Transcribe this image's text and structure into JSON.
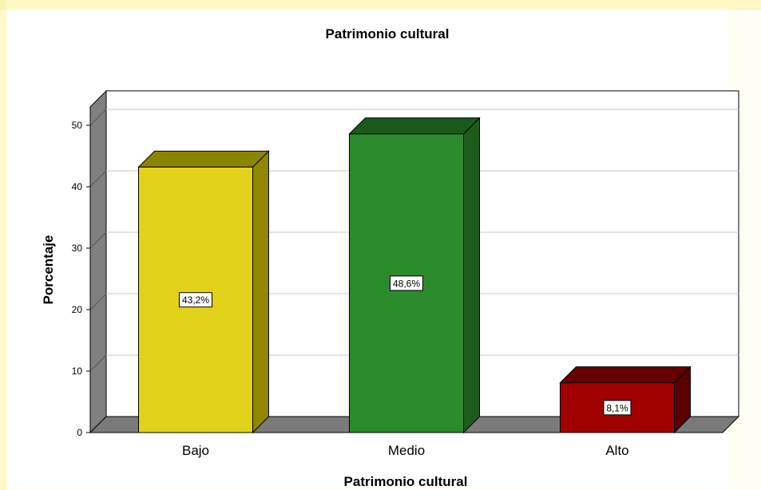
{
  "chart_data": {
    "type": "bar",
    "title": "Patrimonio cultural",
    "xlabel": "Patrimonio cultural",
    "ylabel": "Porcentaje",
    "categories": [
      "Bajo",
      "Medio",
      "Alto"
    ],
    "values": [
      43.2,
      48.6,
      8.1
    ],
    "data_labels": [
      "43,2%",
      "48,6%",
      "8,1%"
    ],
    "y_ticks": [
      0,
      10,
      20,
      30,
      40,
      50
    ],
    "ylim": [
      0,
      53
    ],
    "grid": true,
    "style": "3d",
    "colors": {
      "bars": [
        "#e2d21a",
        "#2b8a2b",
        "#a00000"
      ],
      "bar_tops": [
        "#8b8400",
        "#1a5a1a",
        "#660000"
      ],
      "bar_sides": [
        "#908800",
        "#1d5c1d",
        "#5a0000"
      ],
      "wall_side": "#808080",
      "floor": "#7a7a7a"
    }
  }
}
